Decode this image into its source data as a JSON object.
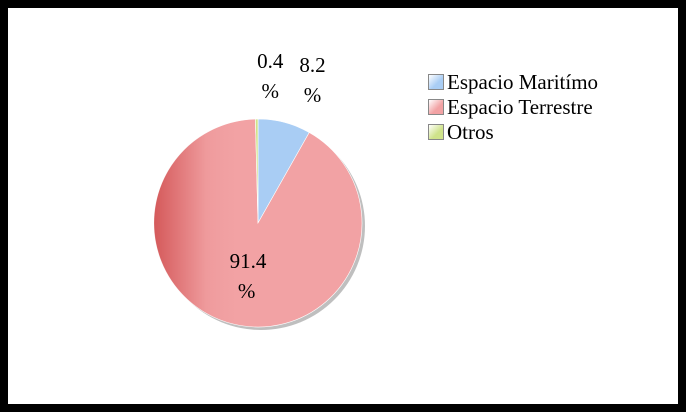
{
  "chart_data": {
    "type": "pie",
    "categories": [
      "Espacio Maritímo",
      "Espacio Terrestre",
      "Otros"
    ],
    "values": [
      8.2,
      91.4,
      0.4
    ],
    "value_labels": [
      "8.2 %",
      "91.4 %",
      "0.4 %"
    ],
    "colors": [
      "#a9cdf4",
      "#f2a2a4",
      "#cfe38a"
    ],
    "legend": "right"
  }
}
